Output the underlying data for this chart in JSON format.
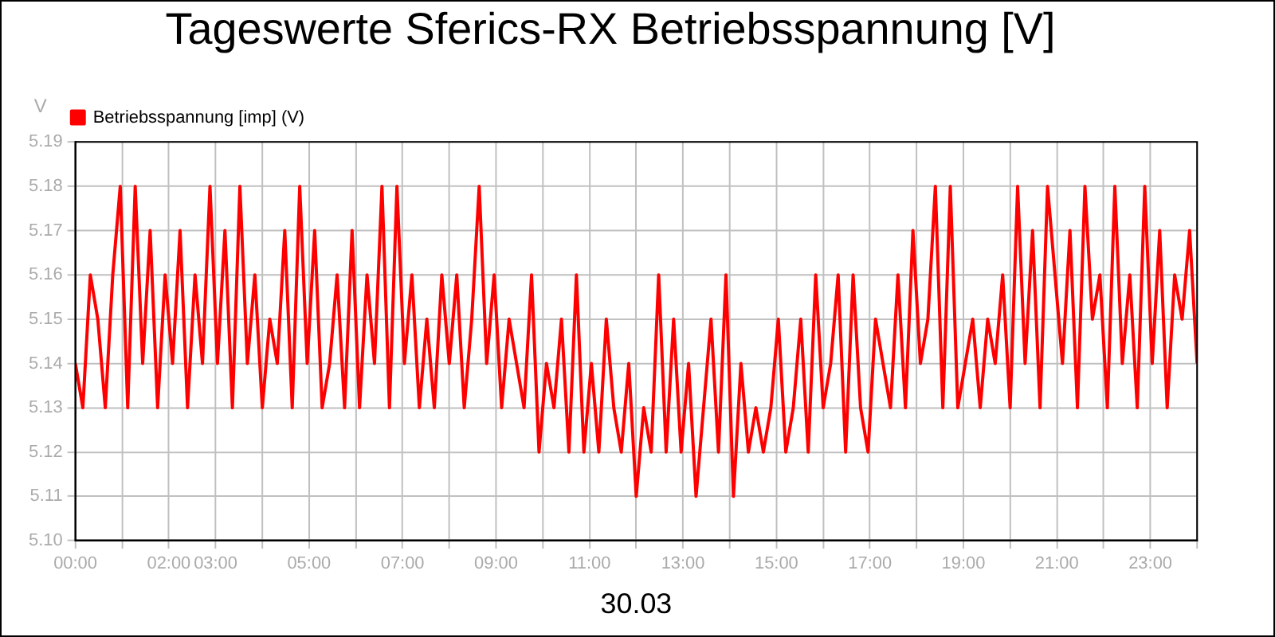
{
  "chart_data": {
    "type": "line",
    "title": "Tageswerte Sferics-RX Betriebsspannung [V]",
    "xlabel": "30.03",
    "ylabel": "V",
    "x": [
      0,
      0.16,
      0.32,
      0.48,
      0.64,
      0.8,
      0.96,
      1.12,
      1.28,
      1.44,
      1.6,
      1.76,
      1.92,
      2.08,
      2.24,
      2.4,
      2.56,
      2.72,
      2.88,
      3.04,
      3.2,
      3.36,
      3.52,
      3.68,
      3.84,
      4,
      4.16,
      4.32,
      4.48,
      4.64,
      4.8,
      4.96,
      5.12,
      5.28,
      5.44,
      5.6,
      5.76,
      5.92,
      6.08,
      6.24,
      6.4,
      6.56,
      6.72,
      6.88,
      7.04,
      7.2,
      7.36,
      7.52,
      7.68,
      7.84,
      8,
      8.16,
      8.32,
      8.48,
      8.64,
      8.8,
      8.96,
      9.12,
      9.28,
      9.44,
      9.6,
      9.76,
      9.92,
      10.08,
      10.24,
      10.4,
      10.56,
      10.72,
      10.88,
      11.04,
      11.2,
      11.36,
      11.52,
      11.68,
      11.84,
      12,
      12.16,
      12.32,
      12.48,
      12.64,
      12.8,
      12.96,
      13.12,
      13.28,
      13.44,
      13.6,
      13.76,
      13.92,
      14.08,
      14.24,
      14.4,
      14.56,
      14.72,
      14.88,
      15.04,
      15.2,
      15.36,
      15.52,
      15.68,
      15.84,
      16,
      16.16,
      16.32,
      16.48,
      16.64,
      16.8,
      16.96,
      17.12,
      17.28,
      17.44,
      17.6,
      17.76,
      17.92,
      18.08,
      18.24,
      18.4,
      18.56,
      18.72,
      18.88,
      19.04,
      19.2,
      19.36,
      19.52,
      19.68,
      19.84,
      20,
      20.16,
      20.32,
      20.48,
      20.64,
      20.8,
      20.96,
      21.12,
      21.28,
      21.44,
      21.6,
      21.76,
      21.92,
      22.08,
      22.24,
      22.4,
      22.56,
      22.72,
      22.88,
      23.04,
      23.2,
      23.36,
      23.52,
      23.68,
      23.84,
      24
    ],
    "series": [
      {
        "name": "Betriebsspannung [imp] (V)",
        "color": "#ff0000",
        "values": [
          5.14,
          5.13,
          5.16,
          5.15,
          5.13,
          5.16,
          5.18,
          5.13,
          5.18,
          5.14,
          5.17,
          5.13,
          5.16,
          5.14,
          5.17,
          5.13,
          5.16,
          5.14,
          5.18,
          5.14,
          5.17,
          5.13,
          5.18,
          5.14,
          5.16,
          5.13,
          5.15,
          5.14,
          5.17,
          5.13,
          5.18,
          5.14,
          5.17,
          5.13,
          5.14,
          5.16,
          5.13,
          5.17,
          5.13,
          5.16,
          5.14,
          5.18,
          5.13,
          5.18,
          5.14,
          5.16,
          5.13,
          5.15,
          5.13,
          5.16,
          5.14,
          5.16,
          5.13,
          5.15,
          5.18,
          5.14,
          5.16,
          5.13,
          5.15,
          5.14,
          5.13,
          5.16,
          5.12,
          5.14,
          5.13,
          5.15,
          5.12,
          5.16,
          5.12,
          5.14,
          5.12,
          5.15,
          5.13,
          5.12,
          5.14,
          5.11,
          5.13,
          5.12,
          5.16,
          5.12,
          5.15,
          5.12,
          5.14,
          5.11,
          5.13,
          5.15,
          5.12,
          5.16,
          5.11,
          5.14,
          5.12,
          5.13,
          5.12,
          5.13,
          5.15,
          5.12,
          5.13,
          5.15,
          5.12,
          5.16,
          5.13,
          5.14,
          5.16,
          5.12,
          5.16,
          5.13,
          5.12,
          5.15,
          5.14,
          5.13,
          5.16,
          5.13,
          5.17,
          5.14,
          5.15,
          5.18,
          5.13,
          5.18,
          5.13,
          5.14,
          5.15,
          5.13,
          5.15,
          5.14,
          5.16,
          5.13,
          5.18,
          5.14,
          5.17,
          5.13,
          5.18,
          5.16,
          5.14,
          5.17,
          5.13,
          5.18,
          5.15,
          5.16,
          5.13,
          5.18,
          5.14,
          5.16,
          5.13,
          5.18,
          5.14,
          5.17,
          5.13,
          5.16,
          5.15,
          5.17,
          5.14
        ]
      }
    ],
    "xlim": [
      0,
      24
    ],
    "xticks": [
      {
        "value": 0,
        "label": "00:00"
      },
      {
        "value": 1,
        "label": null
      },
      {
        "value": 2,
        "label": "02:00"
      },
      {
        "value": 3,
        "label": "03:00"
      },
      {
        "value": 4,
        "label": null
      },
      {
        "value": 5,
        "label": "05:00"
      },
      {
        "value": 6,
        "label": null
      },
      {
        "value": 7,
        "label": "07:00"
      },
      {
        "value": 8,
        "label": null
      },
      {
        "value": 9,
        "label": "09:00"
      },
      {
        "value": 10,
        "label": null
      },
      {
        "value": 11,
        "label": "11:00"
      },
      {
        "value": 12,
        "label": null
      },
      {
        "value": 13,
        "label": "13:00"
      },
      {
        "value": 14,
        "label": null
      },
      {
        "value": 15,
        "label": "15:00"
      },
      {
        "value": 16,
        "label": null
      },
      {
        "value": 17,
        "label": "17:00"
      },
      {
        "value": 18,
        "label": null
      },
      {
        "value": 19,
        "label": "19:00"
      },
      {
        "value": 20,
        "label": null
      },
      {
        "value": 21,
        "label": "21:00"
      },
      {
        "value": 22,
        "label": null
      },
      {
        "value": 23,
        "label": "23:00"
      },
      {
        "value": 24,
        "label": null
      }
    ],
    "ylim": [
      5.1,
      5.19
    ],
    "yticks": [
      {
        "value": 5.1,
        "label": "5.10"
      },
      5.11,
      5.12,
      5.13,
      5.14,
      5.15,
      5.16,
      5.17,
      5.18,
      5.19
    ],
    "grid": true,
    "legend": "top left",
    "marker": "none",
    "line_style": "solid"
  }
}
